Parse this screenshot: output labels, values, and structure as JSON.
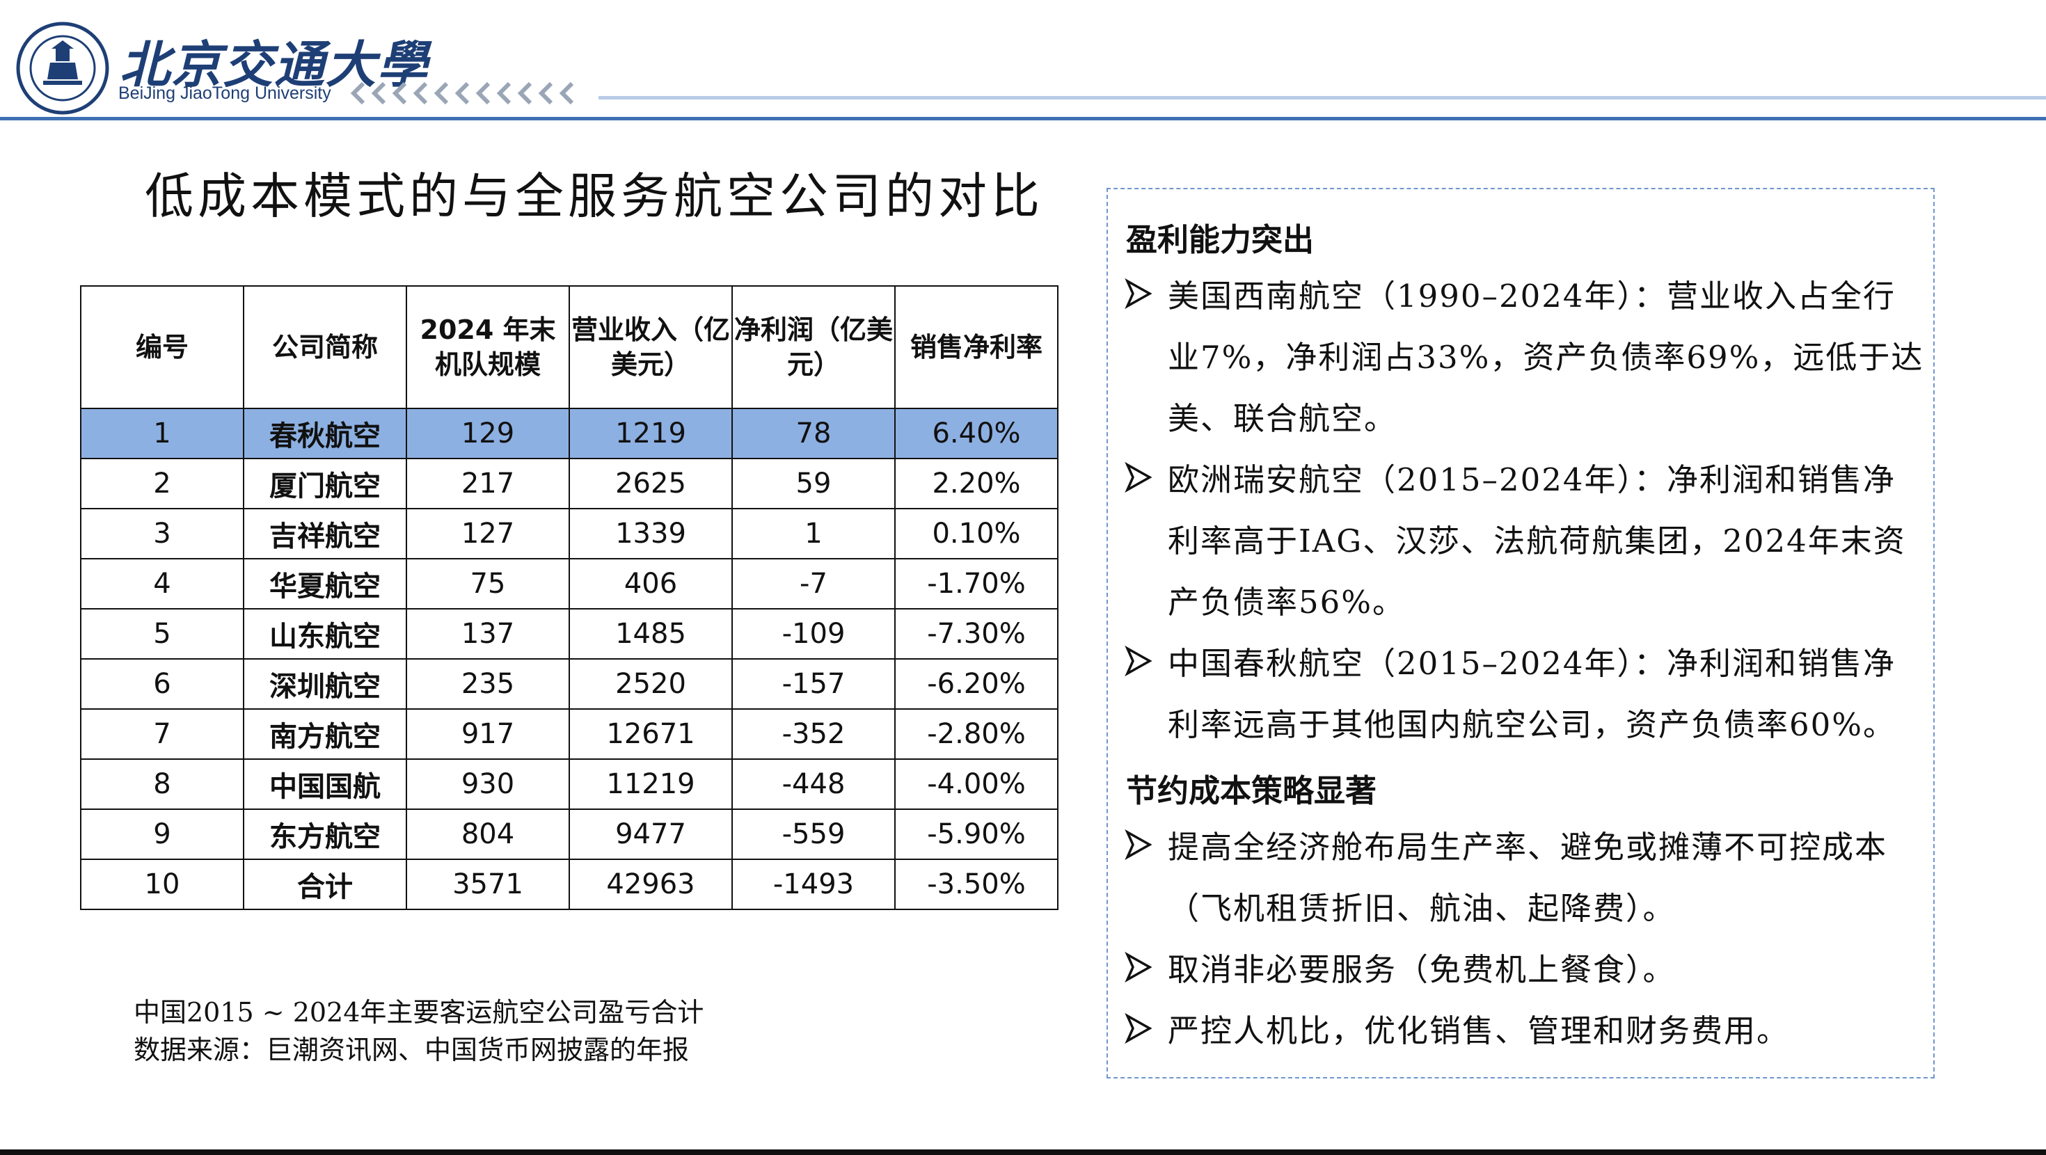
{
  "header": {
    "logo_cn": "北京交通大學",
    "logo_en": "BeiJing JiaoTong University"
  },
  "title": "低成本模式的与全服务航空公司的对比",
  "table": {
    "headers": [
      "编号",
      "公司简称",
      "2024 年末机队规模",
      "营业收入（亿美元）",
      "净利润（亿美元）",
      "销售净利率"
    ],
    "rows": [
      [
        "1",
        "春秋航空",
        "129",
        "1219",
        "78",
        "6.40%"
      ],
      [
        "2",
        "厦门航空",
        "217",
        "2625",
        "59",
        "2.20%"
      ],
      [
        "3",
        "吉祥航空",
        "127",
        "1339",
        "1",
        "0.10%"
      ],
      [
        "4",
        "华夏航空",
        "75",
        "406",
        "-7",
        "-1.70%"
      ],
      [
        "5",
        "山东航空",
        "137",
        "1485",
        "-109",
        "-7.30%"
      ],
      [
        "6",
        "深圳航空",
        "235",
        "2520",
        "-157",
        "-6.20%"
      ],
      [
        "7",
        "南方航空",
        "917",
        "12671",
        "-352",
        "-2.80%"
      ],
      [
        "8",
        "中国国航",
        "930",
        "11219",
        "-448",
        "-4.00%"
      ],
      [
        "9",
        "东方航空",
        "804",
        "9477",
        "-559",
        "-5.90%"
      ],
      [
        "10",
        "合计",
        "3571",
        "42963",
        "-1493",
        "-3.50%"
      ]
    ],
    "highlight_color": "#8db0e2"
  },
  "source": {
    "line1": "中国2015 ~ 2024年主要客运航空公司盈亏合计",
    "line2": "数据来源：巨潮资讯网、中国货币网披露的年报"
  },
  "panel": {
    "section1": "盈利能力突出",
    "bullets1": [
      "美国西南航空（1990–2024年）：营业收入占全行业7%，净利润占33%，资产负债率69%，远低于达美、联合航空。",
      "欧洲瑞安航空（2015–2024年）：净利润和销售净利率高于IAG、汉莎、法航荷航集团，2024年末资产负债率56%。",
      "中国春秋航空（2015–2024年）：净利润和销售净利率远高于其他国内航空公司，资产负债率60%。"
    ],
    "section2": "节约成本策略显著",
    "bullets2": [
      "提高全经济舱布局生产率、避免或摊薄不可控成本（飞机租赁折旧、航油、起降费）。",
      "取消非必要服务（免费机上餐食）。",
      "严控人机比，优化销售、管理和财务费用。"
    ]
  },
  "colors": {
    "brand_blue": "#1e3f76",
    "header_line": "#3f6fb4",
    "box_border": "#6e96cf"
  },
  "icons": [
    "university-seal-icon",
    "chevron-left-icon",
    "arrow-bullet-icon"
  ]
}
